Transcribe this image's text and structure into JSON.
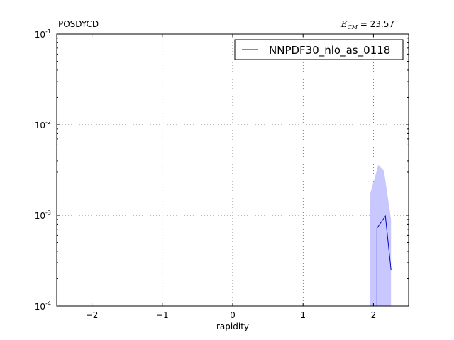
{
  "chart_data": {
    "type": "line",
    "title_left": "POSDYCD",
    "title_right_symbol": "E",
    "title_right_subscript": "CM",
    "title_right_value": " = 23.57",
    "xlabel": "rapidity",
    "ylabel": "",
    "xlim": [
      -2.5,
      2.5
    ],
    "ylim": [
      0.0001,
      0.1
    ],
    "yscale": "log",
    "grid": true,
    "legend_position": "top-right",
    "x_ticks": [
      {
        "value": -2,
        "label": "−2"
      },
      {
        "value": -1,
        "label": "−1"
      },
      {
        "value": 0,
        "label": "0"
      },
      {
        "value": 1,
        "label": "1"
      },
      {
        "value": 2,
        "label": "2"
      }
    ],
    "y_ticks": [
      {
        "value": 0.0001,
        "base": "10",
        "exp": "-4"
      },
      {
        "value": 0.001,
        "base": "10",
        "exp": "-3"
      },
      {
        "value": 0.01,
        "base": "10",
        "exp": "-2"
      },
      {
        "value": 0.1,
        "base": "10",
        "exp": "-1"
      }
    ],
    "series": [
      {
        "name": "NNPDF30_nlo_as_0118",
        "color": "#0000cc",
        "band_color": "#c8c8ff",
        "x": [
          2.05,
          2.05,
          2.17,
          2.25
        ],
        "y": [
          0.0001,
          0.00072,
          0.00098,
          0.00025
        ],
        "band": {
          "x": [
            1.95,
            2.07,
            2.15,
            2.25
          ],
          "upper": [
            0.0017,
            0.0036,
            0.0031,
            0.0009
          ],
          "lower": [
            0.0001,
            0.0001,
            0.0001,
            0.0001
          ]
        }
      }
    ]
  }
}
